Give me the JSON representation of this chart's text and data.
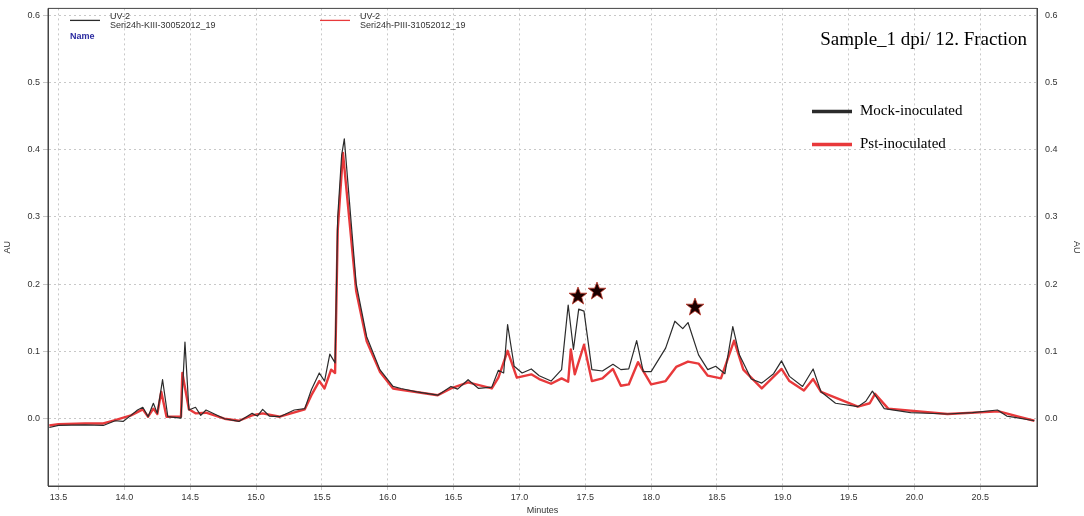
{
  "chart_data": {
    "type": "line",
    "title": "Sample_1 dpi/ 12. Fraction",
    "xlabel": "Minutes",
    "ylabel": "AU",
    "y2label": "AU",
    "annotations": [
      "UV-2",
      "Seri24h-KIII-30052012_19",
      "UV-2",
      "Seri24h-PIII-31052012_19",
      "Name"
    ],
    "xlim": [
      13.42,
      20.93
    ],
    "xticks": [
      13.5,
      {
        "value": 14,
        "label": "14.0"
      },
      14.5,
      {
        "value": 15,
        "label": "15.0"
      },
      15.5,
      {
        "value": 16,
        "label": "16.0"
      },
      16.5,
      {
        "value": 17,
        "label": "17.0"
      },
      17.5,
      {
        "value": 18,
        "label": "18.0"
      },
      18.5,
      {
        "value": 19,
        "label": "19.0"
      },
      19.5,
      {
        "value": 20,
        "label": "20.0"
      },
      20.5
    ],
    "ylim": [
      -0.1,
      0.61
    ],
    "yticks": [
      {
        "value": 0,
        "label": "0.0"
      },
      0.1,
      0.2,
      0.3,
      0.4,
      0.5,
      0.6
    ],
    "y2lim": [
      -0.1,
      0.61
    ],
    "y2ticks": [
      {
        "value": 0,
        "label": "0.0"
      },
      0.1,
      0.2,
      0.3,
      0.4,
      0.5,
      0.6
    ],
    "grid": true,
    "legend": "top right",
    "series": [
      {
        "name": "Mock-inoculated",
        "color": "#2b2b2b",
        "x": [
          13.43,
          13.5,
          13.7,
          13.84,
          13.93,
          13.99,
          14.05,
          14.1,
          14.14,
          14.18,
          14.22,
          14.25,
          14.29,
          14.33,
          14.43,
          14.46,
          14.49,
          14.54,
          14.58,
          14.62,
          14.76,
          14.87,
          14.97,
          15.01,
          15.05,
          15.1,
          15.18,
          15.29,
          15.37,
          15.42,
          15.48,
          15.52,
          15.56,
          15.6,
          15.62,
          15.65,
          15.67,
          15.76,
          15.84,
          15.94,
          16.04,
          16.1,
          16.22,
          16.38,
          16.48,
          16.53,
          16.61,
          16.69,
          16.79,
          16.84,
          16.88,
          16.91,
          16.96,
          17.02,
          17.09,
          17.15,
          17.24,
          17.32,
          17.37,
          17.41,
          17.45,
          17.49,
          17.55,
          17.63,
          17.71,
          17.77,
          17.83,
          17.89,
          17.94,
          18.0,
          18.11,
          18.18,
          18.24,
          18.28,
          18.36,
          18.43,
          18.49,
          18.56,
          18.62,
          18.67,
          18.76,
          18.84,
          18.93,
          18.99,
          19.05,
          19.15,
          19.23,
          19.29,
          19.4,
          19.57,
          19.63,
          19.68,
          19.77,
          19.97,
          20.25,
          20.44,
          20.63,
          20.7,
          20.91
        ],
        "values": [
          -0.013,
          -0.01,
          -0.009,
          -0.01,
          -0.003,
          -0.004,
          0.005,
          0.013,
          0.017,
          0.003,
          0.023,
          0.008,
          0.058,
          0.003,
          0.001,
          0.114,
          0.013,
          0.017,
          0.005,
          0.013,
          0.0,
          -0.004,
          0.008,
          0.004,
          0.014,
          0.004,
          0.003,
          0.013,
          0.015,
          0.043,
          0.068,
          0.056,
          0.096,
          0.083,
          0.3,
          0.392,
          0.416,
          0.201,
          0.122,
          0.073,
          0.048,
          0.045,
          0.04,
          0.035,
          0.048,
          0.044,
          0.058,
          0.045,
          0.047,
          0.072,
          0.068,
          0.14,
          0.078,
          0.068,
          0.074,
          0.064,
          0.056,
          0.073,
          0.169,
          0.103,
          0.163,
          0.16,
          0.073,
          0.071,
          0.081,
          0.073,
          0.074,
          0.116,
          0.07,
          0.07,
          0.105,
          0.145,
          0.134,
          0.143,
          0.095,
          0.073,
          0.078,
          0.067,
          0.137,
          0.095,
          0.059,
          0.053,
          0.067,
          0.086,
          0.063,
          0.048,
          0.074,
          0.04,
          0.023,
          0.018,
          0.026,
          0.041,
          0.015,
          0.009,
          0.007,
          0.009,
          0.013,
          0.004,
          -0.003
        ]
      },
      {
        "name": "Pst-inoculated",
        "color": "#e8393b",
        "x": [
          13.43,
          13.5,
          13.7,
          13.84,
          13.93,
          14.05,
          14.14,
          14.18,
          14.22,
          14.25,
          14.28,
          14.32,
          14.43,
          14.44,
          14.49,
          14.54,
          14.62,
          14.76,
          14.87,
          14.97,
          15.05,
          15.18,
          15.37,
          15.42,
          15.48,
          15.52,
          15.57,
          15.6,
          15.62,
          15.66,
          15.76,
          15.84,
          15.94,
          16.04,
          16.1,
          16.38,
          16.48,
          16.61,
          16.79,
          16.84,
          16.91,
          16.98,
          17.09,
          17.15,
          17.24,
          17.32,
          17.37,
          17.39,
          17.42,
          17.49,
          17.55,
          17.63,
          17.71,
          17.77,
          17.83,
          17.9,
          18.0,
          18.11,
          18.19,
          18.28,
          18.36,
          18.43,
          18.53,
          18.63,
          18.7,
          18.84,
          18.99,
          19.05,
          19.16,
          19.23,
          19.29,
          19.57,
          19.66,
          19.7,
          19.8,
          20.25,
          20.64,
          20.91
        ],
        "values": [
          -0.01,
          -0.008,
          -0.007,
          -0.007,
          -0.002,
          0.005,
          0.014,
          0.003,
          0.015,
          0.007,
          0.04,
          0.003,
          0.003,
          0.068,
          0.014,
          0.008,
          0.009,
          0.0,
          -0.003,
          0.005,
          0.008,
          0.003,
          0.014,
          0.035,
          0.056,
          0.045,
          0.073,
          0.068,
          0.28,
          0.395,
          0.19,
          0.115,
          0.07,
          0.045,
          0.043,
          0.035,
          0.045,
          0.054,
          0.045,
          0.061,
          0.101,
          0.061,
          0.066,
          0.059,
          0.052,
          0.06,
          0.055,
          0.103,
          0.066,
          0.11,
          0.056,
          0.06,
          0.074,
          0.049,
          0.051,
          0.084,
          0.051,
          0.056,
          0.077,
          0.085,
          0.082,
          0.064,
          0.06,
          0.116,
          0.073,
          0.045,
          0.074,
          0.056,
          0.042,
          0.059,
          0.04,
          0.018,
          0.023,
          0.037,
          0.015,
          0.007,
          0.011,
          -0.003
        ]
      }
    ]
  }
}
